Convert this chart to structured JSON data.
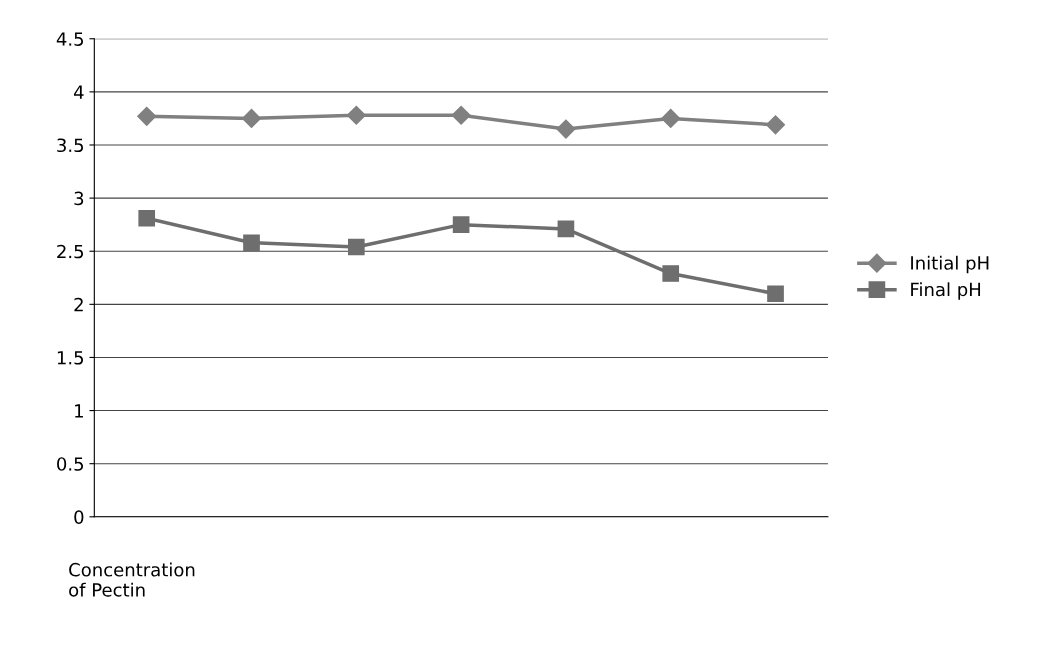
{
  "chart_data": {
    "type": "line",
    "xlabel": "Concentration\nof Pectin",
    "categories": [
      null,
      null,
      null,
      null,
      null,
      null,
      null
    ],
    "series": [
      {
        "name": "Initial pH",
        "color": "#808080",
        "marker": "diamond",
        "values": [
          3.77,
          3.75,
          3.78,
          3.78,
          3.65,
          3.75,
          3.69
        ]
      },
      {
        "name": "Final pH",
        "color": "#6e6e6e",
        "marker": "square",
        "values": [
          2.81,
          2.58,
          2.54,
          2.75,
          2.71,
          2.29,
          2.1
        ]
      }
    ],
    "ylim": [
      0,
      4.5
    ],
    "yticks": [
      0,
      0.5,
      1,
      1.5,
      2,
      2.5,
      3,
      3.5,
      4,
      4.5
    ],
    "grid": "y",
    "legend": "right",
    "tick_labels": "y"
  }
}
